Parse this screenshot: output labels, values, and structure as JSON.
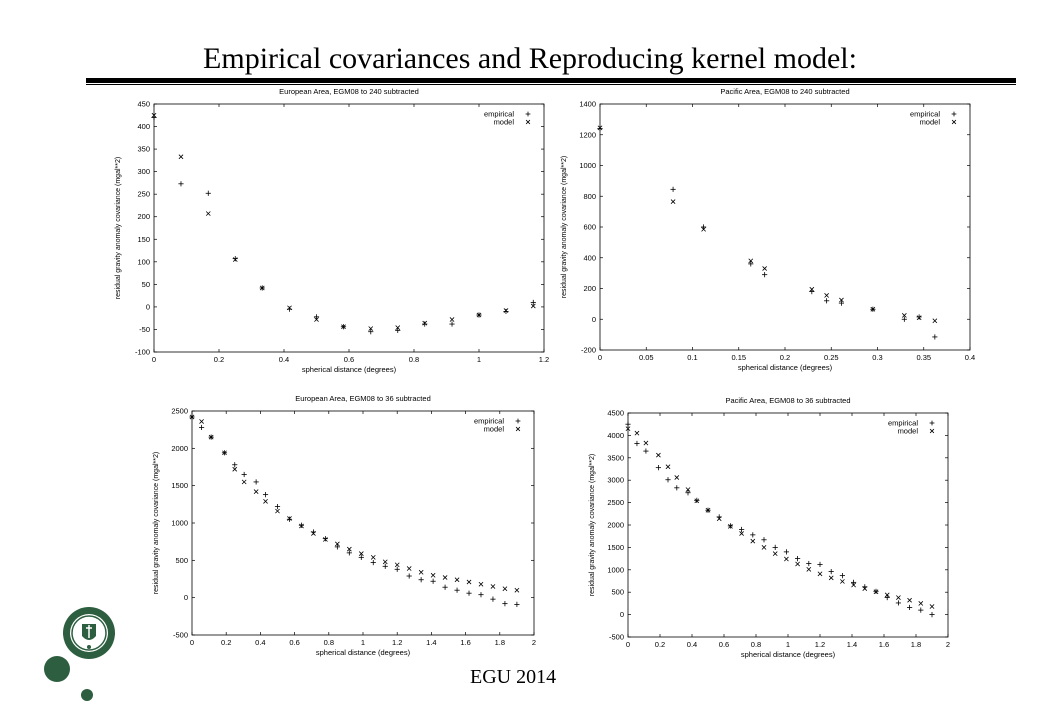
{
  "slide": {
    "title": "Empirical covariances and Reproducing kernel model:",
    "footer": "EGU 2014",
    "accent_color": "#2d5e3f"
  },
  "chart_data": [
    {
      "type": "scatter",
      "title": "European Area, EGM08 to 240 subtracted",
      "xlabel": "spherical distance (degrees)",
      "ylabel": "residual gravity anomaly covariance (mgal**2)",
      "xlim": [
        0,
        1.2
      ],
      "ylim": [
        -100,
        450
      ],
      "xticks": [
        0,
        0.2,
        0.4,
        0.6,
        0.8,
        1,
        1.2
      ],
      "xtick_labels": [
        "0",
        "0.2",
        "0.4",
        "0.6",
        "0.8",
        "1",
        "1.2"
      ],
      "yticks": [
        -100,
        -50,
        0,
        50,
        100,
        150,
        200,
        250,
        300,
        350,
        400,
        450
      ],
      "ytick_labels": [
        "-100",
        "-50",
        "0",
        "50",
        "100",
        "150",
        "200",
        "250",
        "300",
        "350",
        "400",
        "450"
      ],
      "legend": "top-right",
      "series": [
        {
          "name": "empirical",
          "marker": "+",
          "x": [
            0,
            0.083,
            0.167,
            0.25,
            0.333,
            0.417,
            0.5,
            0.583,
            0.667,
            0.75,
            0.833,
            0.917,
            1.0,
            1.083,
            1.167
          ],
          "y": [
            420,
            273,
            252,
            107,
            42,
            -5,
            -22,
            -44,
            -55,
            -52,
            -38,
            -38,
            -18,
            -10,
            10
          ]
        },
        {
          "name": "model",
          "marker": "x",
          "x": [
            0,
            0.083,
            0.167,
            0.25,
            0.333,
            0.417,
            0.5,
            0.583,
            0.667,
            0.75,
            0.833,
            0.917,
            1.0,
            1.083,
            1.167
          ],
          "y": [
            425,
            333,
            207,
            105,
            42,
            -2,
            -28,
            -44,
            -48,
            -46,
            -36,
            -28,
            -18,
            -8,
            2
          ]
        }
      ]
    },
    {
      "type": "scatter",
      "title": "Pacific Area, EGM08 to 240 subtracted",
      "xlabel": "spherical distance (degrees)",
      "ylabel": "residual gravity anomaly covariance (mgal**2)",
      "xlim": [
        0,
        0.4
      ],
      "ylim": [
        -200,
        1400
      ],
      "xticks": [
        0,
        0.05,
        0.1,
        0.15,
        0.2,
        0.25,
        0.3,
        0.35,
        0.4
      ],
      "xtick_labels": [
        "0",
        "0.05",
        "0.1",
        "0.15",
        "0.2",
        "0.25",
        "0.3",
        "0.35",
        "0.4"
      ],
      "yticks": [
        -200,
        0,
        200,
        400,
        600,
        800,
        1000,
        1200,
        1400
      ],
      "ytick_labels": [
        "-200",
        "0",
        "200",
        "400",
        "600",
        "800",
        "1000",
        "1200",
        "1400"
      ],
      "legend": "top-right",
      "series": [
        {
          "name": "empirical",
          "marker": "+",
          "x": [
            0,
            0.079,
            0.112,
            0.163,
            0.178,
            0.229,
            0.245,
            0.261,
            0.295,
            0.329,
            0.345,
            0.362
          ],
          "y": [
            1240,
            845,
            600,
            360,
            290,
            180,
            120,
            105,
            65,
            0,
            15,
            -115
          ]
        },
        {
          "name": "model",
          "marker": "x",
          "x": [
            0,
            0.079,
            0.112,
            0.163,
            0.178,
            0.229,
            0.245,
            0.261,
            0.295,
            0.329,
            0.345,
            0.362
          ],
          "y": [
            1245,
            765,
            585,
            380,
            330,
            195,
            155,
            125,
            65,
            25,
            10,
            -10
          ]
        }
      ]
    },
    {
      "type": "scatter",
      "title": "European Area, EGM08 to 36 subtracted",
      "xlabel": "spherical distance (degrees)",
      "ylabel": "residual gravity anomaly covariance (mgal**2)",
      "xlim": [
        0,
        2
      ],
      "ylim": [
        -500,
        2500
      ],
      "xticks": [
        0,
        0.2,
        0.4,
        0.6,
        0.8,
        1,
        1.2,
        1.4,
        1.6,
        1.8,
        2
      ],
      "xtick_labels": [
        "0",
        "0.2",
        "0.4",
        "0.6",
        "0.8",
        "1",
        "1.2",
        "1.4",
        "1.6",
        "1.8",
        "2"
      ],
      "yticks": [
        -500,
        0,
        500,
        1000,
        1500,
        2000,
        2500
      ],
      "ytick_labels": [
        "-500",
        "0",
        "500",
        "1000",
        "1500",
        "2000",
        "2500"
      ],
      "legend": "top-right",
      "series": [
        {
          "name": "empirical",
          "marker": "+",
          "x": [
            0,
            0.056,
            0.112,
            0.19,
            0.25,
            0.305,
            0.375,
            0.43,
            0.5,
            0.57,
            0.64,
            0.71,
            0.78,
            0.85,
            0.92,
            0.99,
            1.06,
            1.13,
            1.2,
            1.27,
            1.34,
            1.41,
            1.48,
            1.55,
            1.62,
            1.69,
            1.76,
            1.83,
            1.9
          ],
          "y": [
            2420,
            2280,
            2150,
            1940,
            1780,
            1650,
            1550,
            1380,
            1220,
            1050,
            970,
            880,
            790,
            680,
            600,
            540,
            470,
            420,
            380,
            290,
            240,
            220,
            140,
            100,
            60,
            40,
            -20,
            -80,
            -90
          ]
        },
        {
          "name": "model",
          "marker": "x",
          "x": [
            0,
            0.056,
            0.112,
            0.19,
            0.25,
            0.305,
            0.375,
            0.43,
            0.5,
            0.57,
            0.64,
            0.71,
            0.78,
            0.85,
            0.92,
            0.99,
            1.06,
            1.13,
            1.2,
            1.27,
            1.34,
            1.41,
            1.48,
            1.55,
            1.62,
            1.69,
            1.76,
            1.83,
            1.9
          ],
          "y": [
            2420,
            2360,
            2150,
            1940,
            1720,
            1550,
            1420,
            1290,
            1160,
            1060,
            960,
            860,
            780,
            720,
            650,
            590,
            540,
            480,
            440,
            390,
            340,
            300,
            270,
            240,
            210,
            180,
            150,
            120,
            100
          ]
        }
      ]
    },
    {
      "type": "scatter",
      "title": "Pacific Area, EGM08 to 36 subtracted",
      "xlabel": "spherical distance (degrees)",
      "ylabel": "residual gravity anomaly covariance (mgal**2)",
      "xlim": [
        0,
        2
      ],
      "ylim": [
        -500,
        4500
      ],
      "xticks": [
        0,
        0.2,
        0.4,
        0.6,
        0.8,
        1,
        1.2,
        1.4,
        1.6,
        1.8,
        2
      ],
      "xtick_labels": [
        "0",
        "0.2",
        "0.4",
        "0.6",
        "0.8",
        "1",
        "1.2",
        "1.4",
        "1.6",
        "1.8",
        "2"
      ],
      "yticks": [
        -500,
        0,
        500,
        1000,
        1500,
        2000,
        2500,
        3000,
        3500,
        4000,
        4500
      ],
      "ytick_labels": [
        "-500",
        "0",
        "500",
        "1000",
        "1500",
        "2000",
        "2500",
        "3000",
        "3500",
        "4000",
        "4500"
      ],
      "legend": "top-right",
      "series": [
        {
          "name": "empirical",
          "marker": "+",
          "x": [
            0,
            0.056,
            0.112,
            0.19,
            0.25,
            0.305,
            0.375,
            0.43,
            0.5,
            0.57,
            0.64,
            0.71,
            0.78,
            0.85,
            0.92,
            0.99,
            1.06,
            1.13,
            1.2,
            1.27,
            1.34,
            1.41,
            1.48,
            1.55,
            1.62,
            1.69,
            1.76,
            1.83,
            1.9
          ],
          "y": [
            4250,
            3820,
            3650,
            3280,
            3010,
            2830,
            2720,
            2550,
            2330,
            2180,
            1980,
            1900,
            1780,
            1670,
            1500,
            1400,
            1250,
            1140,
            1120,
            960,
            870,
            720,
            620,
            520,
            380,
            260,
            160,
            100,
            0
          ]
        },
        {
          "name": "model",
          "marker": "x",
          "x": [
            0,
            0.056,
            0.112,
            0.19,
            0.25,
            0.305,
            0.375,
            0.43,
            0.5,
            0.57,
            0.64,
            0.71,
            0.78,
            0.85,
            0.92,
            0.99,
            1.06,
            1.13,
            1.2,
            1.27,
            1.34,
            1.41,
            1.48,
            1.55,
            1.62,
            1.69,
            1.76,
            1.83,
            1.9
          ],
          "y": [
            4150,
            4050,
            3830,
            3560,
            3300,
            3060,
            2790,
            2540,
            2330,
            2140,
            1970,
            1810,
            1640,
            1500,
            1360,
            1240,
            1130,
            1010,
            910,
            820,
            740,
            660,
            580,
            510,
            440,
            380,
            320,
            250,
            180
          ]
        }
      ]
    }
  ]
}
